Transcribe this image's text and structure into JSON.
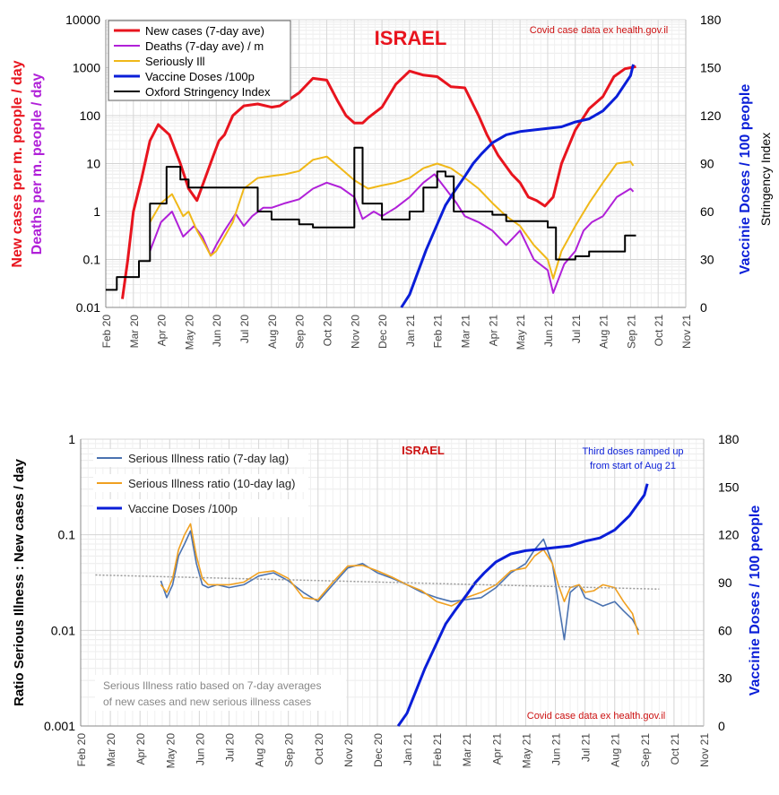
{
  "chart_data": [
    {
      "type": "line",
      "title": "ISRAEL",
      "source_note": "Covid case data ex health.gov.il",
      "y_left_label_1": "New cases per m. people / day",
      "y_left_label_2": "Deaths per m. people / day",
      "y_right_label_1": "Vaccinie Doses / 100 people",
      "y_right_label_2": "Stringency Index",
      "yscale": "log",
      "ylim": [
        0.01,
        10000
      ],
      "y_ticks": [
        "0.01",
        "0.1",
        "1",
        "10",
        "100",
        "1000",
        "10000"
      ],
      "y2lim": [
        0,
        180
      ],
      "y2_ticks": [
        "0",
        "30",
        "60",
        "90",
        "120",
        "150",
        "180"
      ],
      "x_ticks": [
        "Feb 20",
        "Mar 20",
        "Apr 20",
        "May 20",
        "Jun 20",
        "Jul 20",
        "Aug 20",
        "Sep 20",
        "Oct 20",
        "Nov 20",
        "Dec 20",
        "Jan 21",
        "Feb 21",
        "Mar 21",
        "Apr 21",
        "May 21",
        "Jun 21",
        "Jul 21",
        "Aug 21",
        "Sep 21",
        "Oct 21",
        "Nov 21"
      ],
      "series": [
        {
          "name": "New cases (7-day ave)",
          "color": "#e8141e",
          "axis": "left",
          "x": [
            0.6,
            0.8,
            1.0,
            1.3,
            1.6,
            1.9,
            2.3,
            2.7,
            3.0,
            3.3,
            3.6,
            3.9,
            4.1,
            4.3,
            4.6,
            5.0,
            5.5,
            6.0,
            6.3,
            7.0,
            7.5,
            8.0,
            8.4,
            8.7,
            9.0,
            9.3,
            9.5,
            10.0,
            10.5,
            11.0,
            11.5,
            12.0,
            12.5,
            13.0,
            13.5,
            13.8,
            14.2,
            14.7,
            15.0,
            15.3,
            15.6,
            15.9,
            16.2,
            16.5,
            17.0,
            17.5,
            18.0,
            18.4,
            18.8,
            19.2
          ],
          "y": [
            0.015,
            0.1,
            1,
            5,
            30,
            65,
            40,
            10,
            3,
            1.7,
            5,
            15,
            30,
            40,
            100,
            160,
            175,
            150,
            160,
            300,
            600,
            550,
            200,
            100,
            70,
            70,
            90,
            150,
            450,
            850,
            700,
            650,
            400,
            380,
            100,
            40,
            15,
            6,
            4,
            2,
            1.7,
            1.3,
            2,
            10,
            50,
            140,
            250,
            650,
            950,
            1050
          ]
        },
        {
          "name": "Deaths (7-day ave) / m",
          "color": "#b020d8",
          "axis": "left",
          "x": [
            1.6,
            2.0,
            2.4,
            2.8,
            3.2,
            3.5,
            3.8,
            4.0,
            4.3,
            4.7,
            5.0,
            5.3,
            5.7,
            6.0,
            6.5,
            7.0,
            7.5,
            8.0,
            8.5,
            9.0,
            9.3,
            9.7,
            10.0,
            10.5,
            11.0,
            11.5,
            11.9,
            12.3,
            12.7,
            13.0,
            13.5,
            14.0,
            14.5,
            15.0,
            15.5,
            16.0,
            16.2,
            16.6,
            17.0,
            17.3,
            17.6,
            18.0,
            18.5,
            19.0,
            19.1
          ],
          "y": [
            0.15,
            0.6,
            1.0,
            0.3,
            0.5,
            0.3,
            0.12,
            0.2,
            0.4,
            0.9,
            0.5,
            0.8,
            1.2,
            1.2,
            1.5,
            1.8,
            3.0,
            4.0,
            3.2,
            2.0,
            0.7,
            1.0,
            0.8,
            1.2,
            2.0,
            4.0,
            6.0,
            3.0,
            1.5,
            0.8,
            0.6,
            0.4,
            0.2,
            0.4,
            0.1,
            0.06,
            0.02,
            0.08,
            0.15,
            0.4,
            0.6,
            0.8,
            2.0,
            3.0,
            2.6
          ]
        },
        {
          "name": "Seriously Ill",
          "color": "#f0b818",
          "axis": "left",
          "x": [
            1.6,
            2.0,
            2.4,
            2.8,
            3.0,
            3.3,
            3.6,
            3.8,
            4.0,
            4.3,
            4.6,
            5.0,
            5.5,
            6.0,
            6.5,
            7.0,
            7.5,
            8.0,
            8.5,
            9.0,
            9.5,
            10.0,
            10.5,
            11.0,
            11.5,
            12.0,
            12.5,
            13.0,
            13.5,
            14.0,
            14.5,
            15.0,
            15.5,
            16.0,
            16.2,
            16.5,
            17.0,
            17.5,
            18.0,
            18.5,
            19.0,
            19.1
          ],
          "y": [
            0.6,
            1.5,
            2.3,
            0.8,
            1.0,
            0.4,
            0.2,
            0.12,
            0.15,
            0.3,
            0.6,
            3.0,
            5.0,
            5.5,
            6.0,
            7.0,
            12.0,
            14.0,
            8.0,
            4.5,
            3.0,
            3.5,
            4.0,
            5.0,
            8.0,
            10.0,
            8.0,
            5.0,
            3.0,
            1.5,
            0.8,
            0.5,
            0.2,
            0.1,
            0.04,
            0.15,
            0.5,
            1.5,
            4.0,
            10.0,
            11.0,
            9.0
          ]
        },
        {
          "name": "Vaccine Doses /100p",
          "color": "#0a1ed8",
          "axis": "right",
          "x": [
            10.7,
            11.0,
            11.3,
            11.6,
            12.0,
            12.3,
            12.6,
            13.0,
            13.3,
            13.6,
            14.0,
            14.5,
            15.0,
            15.5,
            16.0,
            16.5,
            17.0,
            17.5,
            18.0,
            18.5,
            19.0,
            19.1
          ],
          "y": [
            0,
            8,
            22,
            36,
            52,
            64,
            72,
            82,
            90,
            96,
            103,
            108,
            110,
            111,
            112,
            113,
            116,
            118,
            123,
            132,
            145,
            152
          ]
        },
        {
          "name": "Oxford Stringency Index",
          "color": "#000000",
          "axis": "right",
          "x": [
            0.0,
            0.4,
            0.9,
            1.2,
            1.6,
            2.2,
            2.7,
            3.0,
            3.5,
            4.0,
            4.5,
            5.0,
            5.5,
            6.0,
            6.3,
            7.0,
            7.5,
            8.0,
            8.5,
            8.8,
            9.0,
            9.3,
            10.0,
            10.5,
            11.0,
            11.5,
            12.0,
            12.3,
            12.6,
            13.0,
            13.5,
            14.0,
            14.5,
            15.0,
            15.5,
            16.0,
            16.3,
            16.6,
            17.0,
            17.5,
            18.0,
            18.5,
            18.8,
            19.0,
            19.2
          ],
          "y": [
            11,
            19,
            19,
            29,
            65,
            88,
            80,
            75,
            75,
            75,
            75,
            75,
            60,
            55,
            55,
            52,
            50,
            50,
            50,
            50,
            100,
            65,
            55,
            55,
            60,
            75,
            85,
            82,
            60,
            60,
            60,
            58,
            54,
            54,
            54,
            50,
            30,
            30,
            32,
            35,
            35,
            35,
            45,
            45,
            45
          ]
        }
      ]
    },
    {
      "type": "line",
      "title": "ISRAEL",
      "source_note": "Covid case data ex health.gov.il",
      "annotation_1": "Third doses ramped up",
      "annotation_2": "from start of Aug 21",
      "note_1": "Serious Illness ratio based on 7-day averages",
      "note_2": "of new cases and new serious illness cases",
      "ylabel": "Ratio Serious Illness : New cases / day",
      "y2label": "Vaccinie Doses / 100 people",
      "yscale": "log",
      "ylim": [
        0.001,
        1
      ],
      "y_ticks": [
        "0.001",
        "0.01",
        "0.1",
        "1"
      ],
      "y2lim": [
        0,
        180
      ],
      "y2_ticks": [
        "0",
        "30",
        "60",
        "90",
        "120",
        "150",
        "180"
      ],
      "x_ticks": [
        "Feb 20",
        "Mar 20",
        "Apr 20",
        "May 20",
        "Jun 20",
        "Jul 20",
        "Aug 20",
        "Sep 20",
        "Oct 20",
        "Nov 20",
        "Dec 20",
        "Jan 21",
        "Feb 21",
        "Mar 21",
        "Apr 21",
        "May 21",
        "Jun 21",
        "Jul 21",
        "Aug 21",
        "Sep 21",
        "Oct 21",
        "Nov 21"
      ],
      "series": [
        {
          "name": "Serious Illness ratio (7-day lag)",
          "color": "#4a72b0",
          "axis": "left",
          "x": [
            2.7,
            2.9,
            3.1,
            3.3,
            3.5,
            3.7,
            3.9,
            4.1,
            4.3,
            4.6,
            5.0,
            5.5,
            6.0,
            6.5,
            7.0,
            7.5,
            8.0,
            8.5,
            9.0,
            9.5,
            10.0,
            10.5,
            11.0,
            11.5,
            12.0,
            12.5,
            13.0,
            13.5,
            14.0,
            14.5,
            15.0,
            15.3,
            15.6,
            15.9,
            16.1,
            16.3,
            16.5,
            16.8,
            17.0,
            17.3,
            17.6,
            18.0,
            18.3,
            18.6,
            18.8
          ],
          "y": [
            0.033,
            0.022,
            0.03,
            0.06,
            0.08,
            0.11,
            0.05,
            0.03,
            0.028,
            0.03,
            0.028,
            0.03,
            0.037,
            0.04,
            0.033,
            0.025,
            0.02,
            0.03,
            0.045,
            0.05,
            0.04,
            0.035,
            0.03,
            0.025,
            0.022,
            0.02,
            0.021,
            0.022,
            0.028,
            0.04,
            0.05,
            0.07,
            0.09,
            0.05,
            0.02,
            0.008,
            0.025,
            0.03,
            0.022,
            0.02,
            0.018,
            0.02,
            0.016,
            0.013,
            0.01
          ]
        },
        {
          "name": "Serious Illness ratio (10-day lag)",
          "color": "#f0a020",
          "axis": "left",
          "x": [
            2.7,
            2.9,
            3.1,
            3.3,
            3.5,
            3.7,
            3.9,
            4.1,
            4.3,
            4.6,
            5.0,
            5.5,
            6.0,
            6.5,
            7.0,
            7.5,
            8.0,
            8.5,
            9.0,
            9.5,
            10.0,
            10.5,
            11.0,
            11.5,
            12.0,
            12.5,
            13.0,
            13.5,
            14.0,
            14.5,
            15.0,
            15.3,
            15.6,
            15.9,
            16.1,
            16.3,
            16.5,
            16.8,
            17.0,
            17.3,
            17.6,
            18.0,
            18.3,
            18.6,
            18.8
          ],
          "y": [
            0.03,
            0.025,
            0.035,
            0.07,
            0.1,
            0.13,
            0.06,
            0.035,
            0.03,
            0.03,
            0.03,
            0.032,
            0.04,
            0.042,
            0.035,
            0.022,
            0.021,
            0.032,
            0.047,
            0.048,
            0.042,
            0.036,
            0.03,
            0.026,
            0.02,
            0.018,
            0.022,
            0.025,
            0.03,
            0.042,
            0.045,
            0.06,
            0.07,
            0.05,
            0.03,
            0.02,
            0.028,
            0.03,
            0.025,
            0.026,
            0.03,
            0.028,
            0.02,
            0.015,
            0.009
          ]
        },
        {
          "name": "Vaccine Doses /100p",
          "color": "#0a1ed8",
          "axis": "right",
          "x": [
            10.7,
            11.0,
            11.3,
            11.6,
            12.0,
            12.3,
            12.6,
            13.0,
            13.3,
            13.6,
            14.0,
            14.5,
            15.0,
            15.5,
            16.0,
            16.5,
            17.0,
            17.5,
            18.0,
            18.5,
            19.0,
            19.1
          ],
          "y": [
            0,
            8,
            22,
            36,
            52,
            64,
            72,
            82,
            90,
            96,
            103,
            108,
            110,
            111,
            112,
            113,
            116,
            118,
            123,
            132,
            145,
            152
          ]
        },
        {
          "name": "",
          "color": "#999999",
          "axis": "left",
          "dotted": true,
          "x": [
            0.5,
            19.5
          ],
          "y": [
            0.038,
            0.027
          ]
        }
      ]
    }
  ]
}
